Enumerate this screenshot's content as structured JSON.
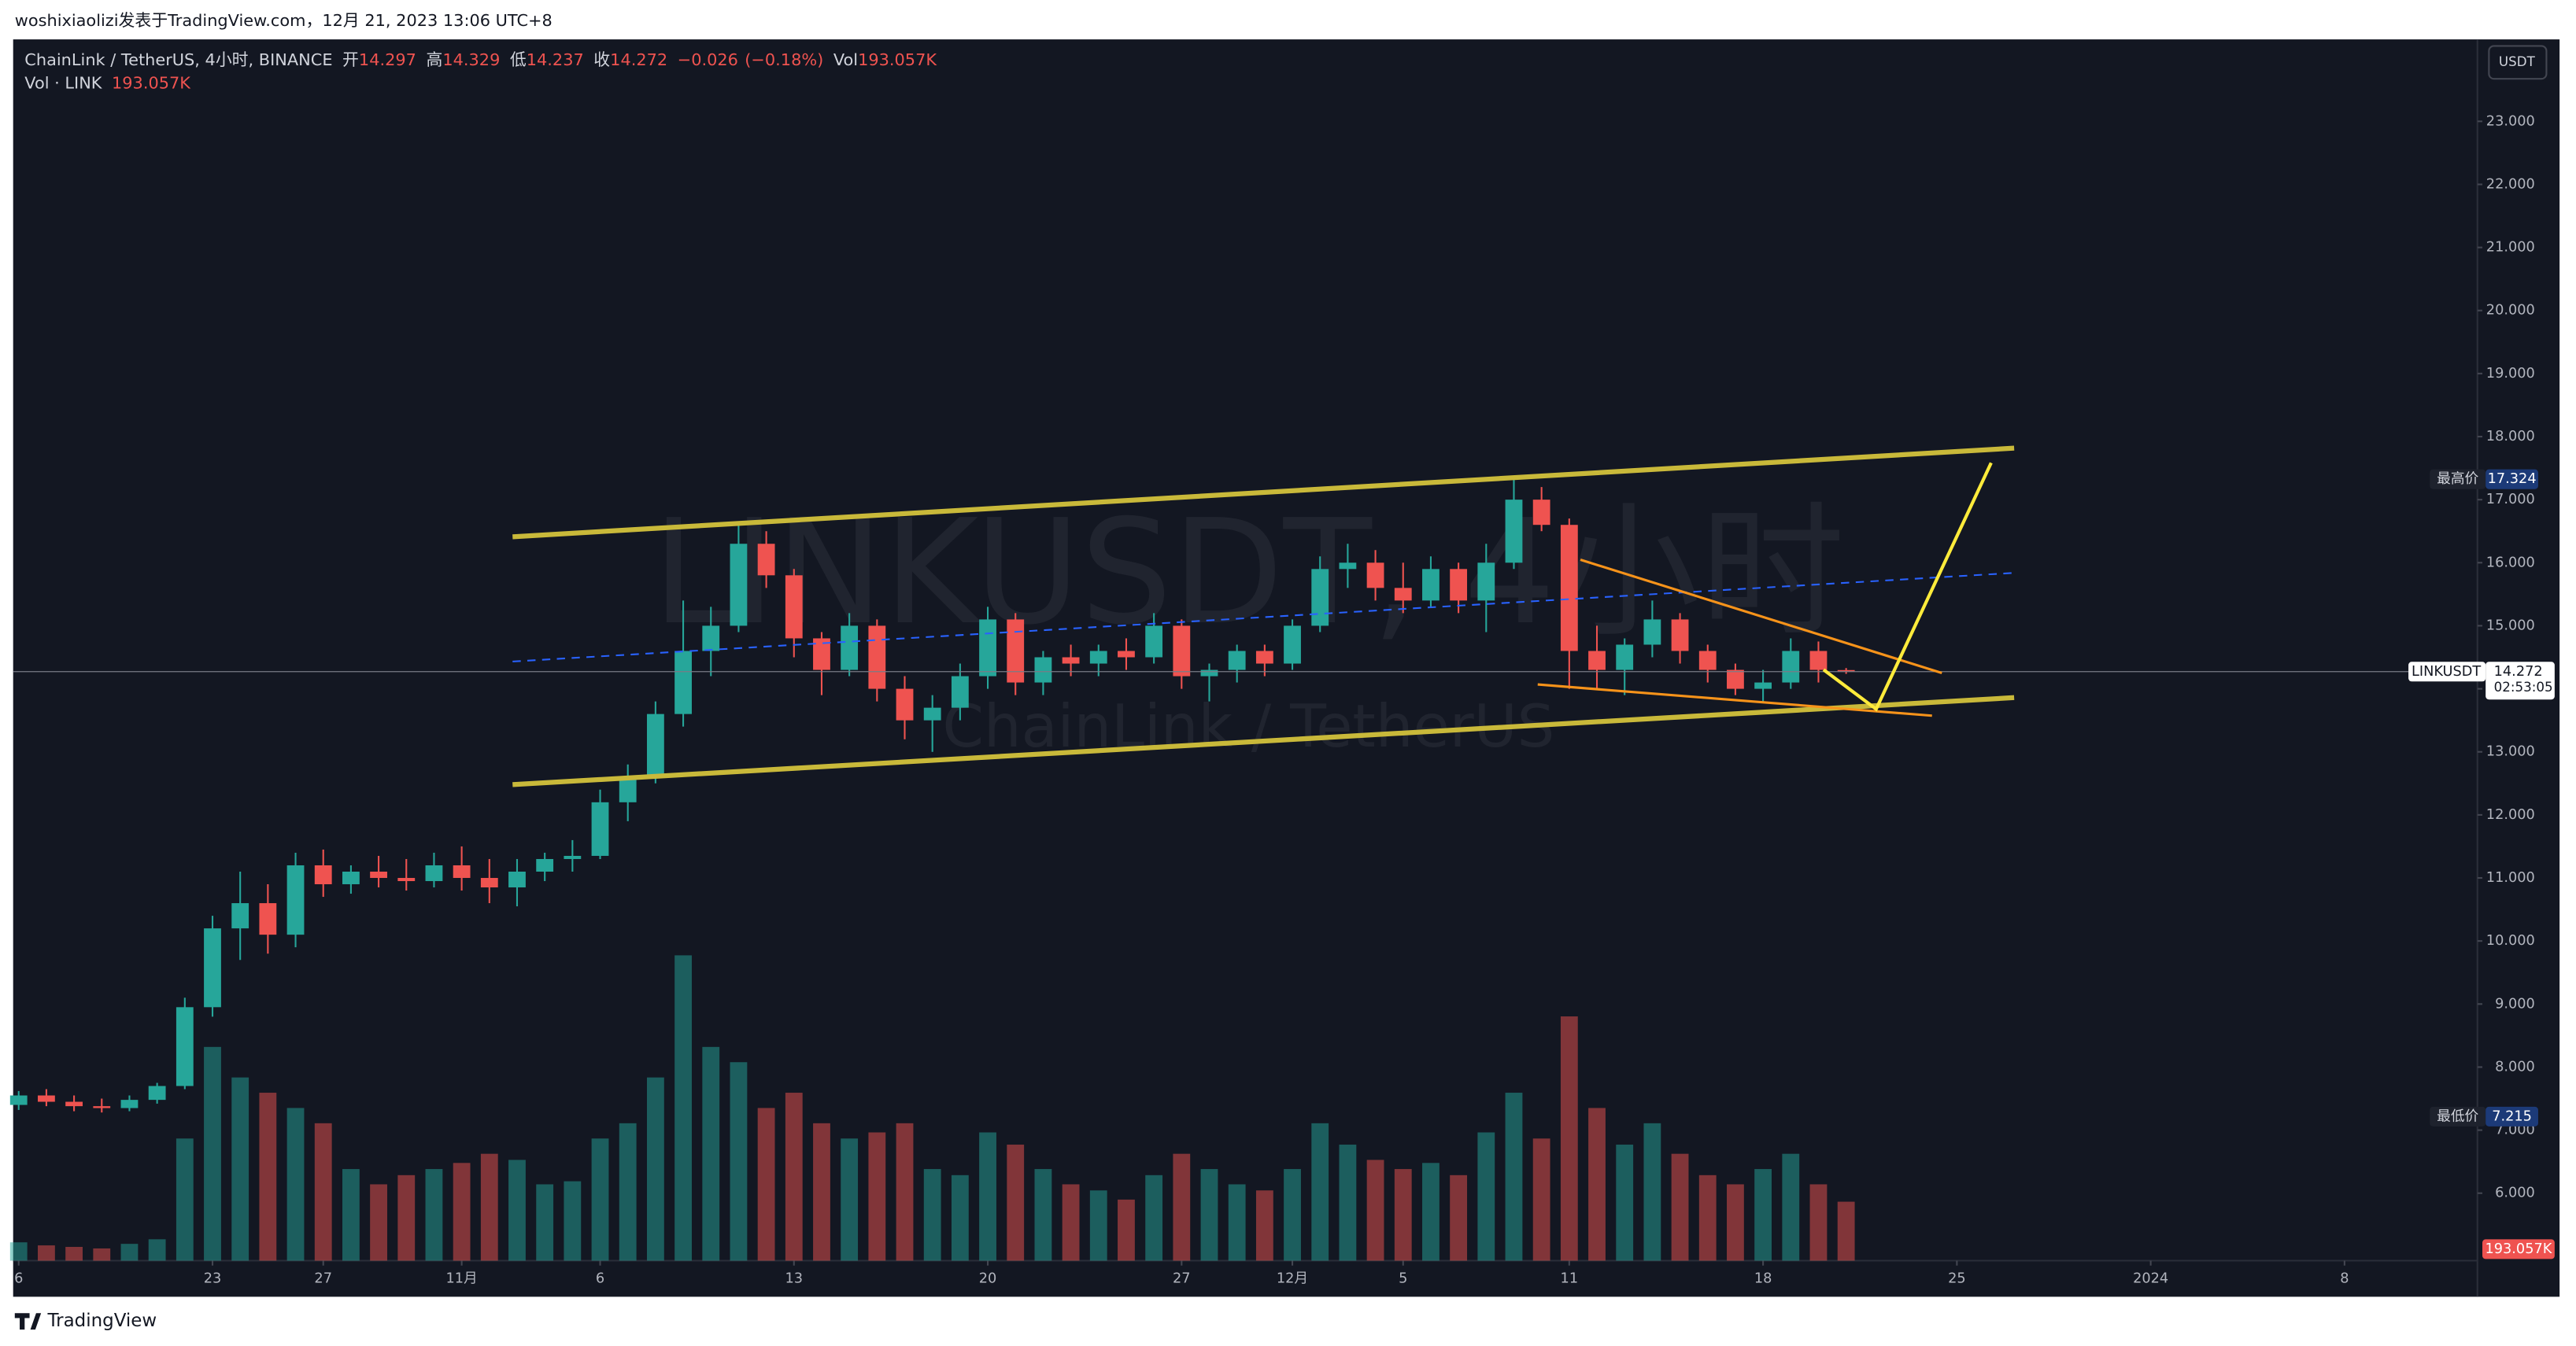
{
  "chart_data": {
    "type": "candlestick",
    "header": "woshixiaolizi发表于TradingView.com，12月 21, 2023 13:06 UTC+8",
    "footer": "TradingView",
    "currency_button": "USDT",
    "watermark": {
      "symbol": "LINKUSDT, 4小时",
      "name": "ChainLink / TetherUS"
    },
    "legend": {
      "symbol": "ChainLink / TetherUS, 4小时, BINANCE",
      "open_label": "开",
      "open": 14.297,
      "high_label": "高",
      "high": 14.329,
      "low_label": "低",
      "low": 14.237,
      "close_label": "收",
      "close": 14.272,
      "change": {
        "value": -0.026,
        "label": "−0.026"
      },
      "change_pct": {
        "value": -0.18,
        "label": "(−0.18%)"
      },
      "vol_label": "Vol",
      "vol": {
        "value": 193057,
        "label": "193.057K"
      },
      "vol_name": "Vol · LINK",
      "vol_value": {
        "value": 193057,
        "label": "193.057K"
      }
    },
    "high_marker": {
      "label": "最高价",
      "value": 17.324
    },
    "low_marker": {
      "label": "最低价",
      "value": 7.215
    },
    "last_price": {
      "symbol": "LINKUSDT",
      "value": 14.272,
      "countdown": "02:53:05"
    },
    "last_volume": {
      "value": 193057,
      "label": "193.057K"
    },
    "x": [
      0,
      1,
      2,
      3,
      4,
      5,
      6,
      7,
      8,
      9,
      10,
      11,
      12,
      13,
      14,
      15,
      16,
      17,
      18,
      19,
      20,
      21,
      22,
      23,
      24,
      25,
      26,
      27,
      28,
      29,
      30,
      31,
      32,
      33,
      34,
      35,
      36,
      37,
      38,
      39,
      40,
      41,
      42,
      43,
      44,
      45,
      46,
      47,
      48,
      49,
      50,
      51,
      52,
      53,
      54,
      55,
      56,
      57,
      58,
      59,
      60,
      61,
      62,
      63,
      64,
      65,
      66
    ],
    "open": [
      7.4,
      7.55,
      7.45,
      7.38,
      7.35,
      7.48,
      7.7,
      8.95,
      10.2,
      10.6,
      10.1,
      11.2,
      10.9,
      11.1,
      11.0,
      10.95,
      11.2,
      11.0,
      10.85,
      11.1,
      11.3,
      11.35,
      12.2,
      12.6,
      13.6,
      14.6,
      15.0,
      16.3,
      15.8,
      14.8,
      14.3,
      15.0,
      14.0,
      13.5,
      13.7,
      14.2,
      15.1,
      14.1,
      14.5,
      14.4,
      14.6,
      14.5,
      15.0,
      14.2,
      14.3,
      14.6,
      14.4,
      15.0,
      15.9,
      16.0,
      15.6,
      15.4,
      15.9,
      15.4,
      16.0,
      17.0,
      16.6,
      14.6,
      14.3,
      14.7,
      15.1,
      14.6,
      14.3,
      14.0,
      14.1,
      14.6,
      14.297
    ],
    "high": [
      7.62,
      7.65,
      7.55,
      7.5,
      7.55,
      7.75,
      9.1,
      10.4,
      11.1,
      10.9,
      11.4,
      11.45,
      11.2,
      11.35,
      11.3,
      11.4,
      11.5,
      11.3,
      11.3,
      11.4,
      11.6,
      12.4,
      12.8,
      13.8,
      15.4,
      15.3,
      16.6,
      16.5,
      15.9,
      14.9,
      15.2,
      15.1,
      14.2,
      13.9,
      14.4,
      15.3,
      15.2,
      14.6,
      14.7,
      14.7,
      14.8,
      15.2,
      15.1,
      14.4,
      14.7,
      14.7,
      15.1,
      16.1,
      16.3,
      16.2,
      16.0,
      16.1,
      16.0,
      16.3,
      17.324,
      17.2,
      16.7,
      15.0,
      14.8,
      15.4,
      15.2,
      14.7,
      14.4,
      14.3,
      14.8,
      14.75,
      14.329
    ],
    "low": [
      7.32,
      7.38,
      7.3,
      7.28,
      7.3,
      7.42,
      7.65,
      8.8,
      9.7,
      9.8,
      9.9,
      10.7,
      10.75,
      10.85,
      10.8,
      10.85,
      10.8,
      10.6,
      10.55,
      10.95,
      11.1,
      11.3,
      11.9,
      12.5,
      13.4,
      14.2,
      14.9,
      15.6,
      14.5,
      13.9,
      14.2,
      13.8,
      13.2,
      13.0,
      13.5,
      14.0,
      13.9,
      13.9,
      14.2,
      14.2,
      14.3,
      14.4,
      14.0,
      13.8,
      14.1,
      14.2,
      14.3,
      14.9,
      15.6,
      15.4,
      15.2,
      15.3,
      15.2,
      14.9,
      15.9,
      16.5,
      14.0,
      14.0,
      13.9,
      14.5,
      14.4,
      14.1,
      13.9,
      13.8,
      14.0,
      14.1,
      14.237
    ],
    "close": [
      7.55,
      7.45,
      7.38,
      7.35,
      7.48,
      7.7,
      8.95,
      10.2,
      10.6,
      10.1,
      11.2,
      10.9,
      11.1,
      11.0,
      10.95,
      11.2,
      11.0,
      10.85,
      11.1,
      11.3,
      11.35,
      12.2,
      12.6,
      13.6,
      14.6,
      15.0,
      16.3,
      15.8,
      14.8,
      14.3,
      15.0,
      14.0,
      13.5,
      13.7,
      14.2,
      15.1,
      14.1,
      14.5,
      14.4,
      14.6,
      14.5,
      15.0,
      14.2,
      14.3,
      14.6,
      14.4,
      15.0,
      15.9,
      16.0,
      15.6,
      15.4,
      15.9,
      15.4,
      16.0,
      17.0,
      16.6,
      14.6,
      14.3,
      14.7,
      15.1,
      14.6,
      14.3,
      14.0,
      14.1,
      14.6,
      14.3,
      14.272
    ],
    "volume": [
      60000,
      50000,
      45000,
      40000,
      55000,
      70000,
      400000,
      700000,
      600000,
      550000,
      500000,
      450000,
      300000,
      250000,
      280000,
      300000,
      320000,
      350000,
      330000,
      250000,
      260000,
      400000,
      450000,
      600000,
      1000000,
      700000,
      650000,
      500000,
      550000,
      450000,
      400000,
      420000,
      450000,
      300000,
      280000,
      420000,
      380000,
      300000,
      250000,
      230000,
      200000,
      280000,
      350000,
      300000,
      250000,
      230000,
      300000,
      450000,
      380000,
      330000,
      300000,
      320000,
      280000,
      420000,
      550000,
      400000,
      800000,
      500000,
      380000,
      450000,
      350000,
      280000,
      250000,
      300000,
      350000,
      250000,
      193057
    ],
    "up_color": "#26a69a",
    "down_color": "#ef5350",
    "xlim": [
      -0.2,
      88.8
    ],
    "xticks": [
      {
        "value": 0,
        "label": "6"
      },
      {
        "value": 7,
        "label": "23"
      },
      {
        "value": 11,
        "label": "27"
      },
      {
        "value": 16,
        "label": "11月"
      },
      {
        "value": 21,
        "label": "6"
      },
      {
        "value": 28,
        "label": "13"
      },
      {
        "value": 35,
        "label": "20"
      },
      {
        "value": 42,
        "label": "27"
      },
      {
        "value": 46,
        "label": "12月"
      },
      {
        "value": 50,
        "label": "5"
      },
      {
        "value": 56,
        "label": "11"
      },
      {
        "value": 63,
        "label": "18"
      },
      {
        "value": 70,
        "label": "25"
      },
      {
        "value": 77,
        "label": "2024"
      },
      {
        "value": 84,
        "label": "8"
      }
    ],
    "ylim": [
      4.93,
      24.3
    ],
    "yticks": [
      {
        "value": 6,
        "label": "6.000"
      },
      {
        "value": 7,
        "label": "7.000"
      },
      {
        "value": 8,
        "label": "8.000"
      },
      {
        "value": 9,
        "label": "9.000"
      },
      {
        "value": 10,
        "label": "10.000"
      },
      {
        "value": 11,
        "label": "11.000"
      },
      {
        "value": 12,
        "label": "12.000"
      },
      {
        "value": 13,
        "label": "13.000"
      },
      {
        "value": 14,
        "label": "14.000"
      },
      {
        "value": 15,
        "label": "15.000"
      },
      {
        "value": 16,
        "label": "16.000"
      },
      {
        "value": 17,
        "label": "17.000"
      },
      {
        "value": 18,
        "label": "18.000"
      },
      {
        "value": 19,
        "label": "19.000"
      },
      {
        "value": 20,
        "label": "20.000"
      },
      {
        "value": 21,
        "label": "21.000"
      },
      {
        "value": 22,
        "label": "22.000"
      },
      {
        "value": 23,
        "label": "23.000"
      }
    ],
    "vlim": [
      0,
      4000000
    ],
    "grid": false
  }
}
